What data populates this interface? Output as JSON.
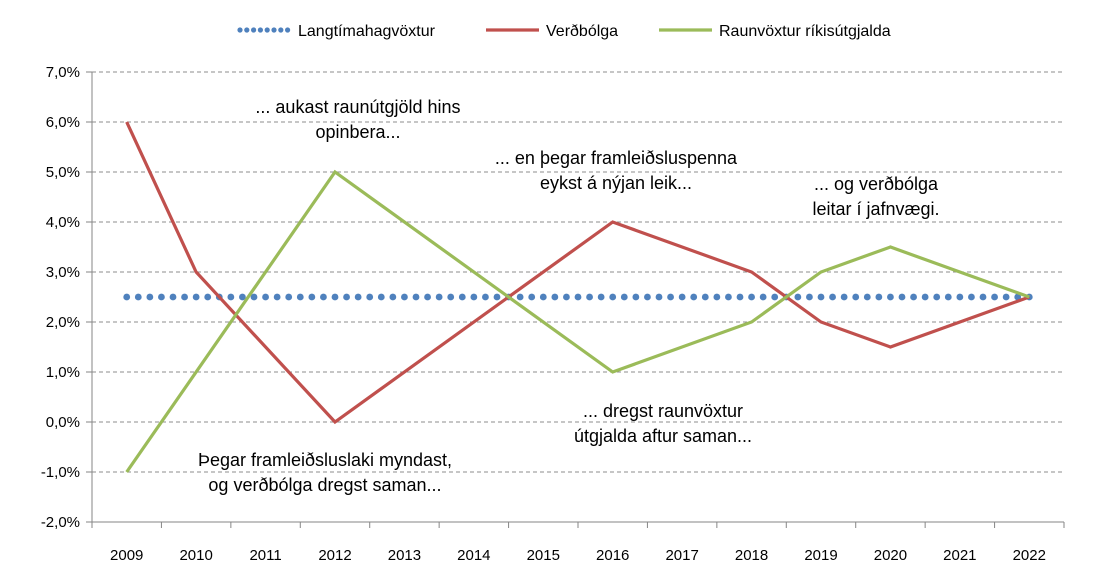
{
  "chart_data": {
    "type": "line",
    "categories": [
      "2009",
      "2010",
      "2011",
      "2012",
      "2013",
      "2014",
      "2015",
      "2016",
      "2017",
      "2018",
      "2019",
      "2020",
      "2021",
      "2022"
    ],
    "ylim": [
      -2.0,
      7.0
    ],
    "yticks": [
      -2.0,
      -1.0,
      0.0,
      1.0,
      2.0,
      3.0,
      4.0,
      5.0,
      6.0,
      7.0
    ],
    "ytick_labels": [
      "-2,0%",
      "-1,0%",
      "0,0%",
      "1,0%",
      "2,0%",
      "3,0%",
      "4,0%",
      "5,0%",
      "6,0%",
      "7,0%"
    ],
    "grid": true,
    "legend_position": "top",
    "series": [
      {
        "name": "Langtímahagvöxtur",
        "color": "#4F81BD",
        "style": "dotted",
        "values": [
          2.5,
          2.5,
          2.5,
          2.5,
          2.5,
          2.5,
          2.5,
          2.5,
          2.5,
          2.5,
          2.5,
          2.5,
          2.5,
          2.5
        ]
      },
      {
        "name": "Verðbólga",
        "color": "#C0504D",
        "style": "solid",
        "values": [
          6.0,
          3.0,
          null,
          0.0,
          null,
          null,
          null,
          4.0,
          null,
          3.0,
          2.0,
          1.5,
          null,
          2.5
        ]
      },
      {
        "name": "Raunvöxtur ríkisútgjalda",
        "color": "#9BBB59",
        "style": "solid",
        "values": [
          -1.0,
          null,
          null,
          5.0,
          null,
          null,
          null,
          1.0,
          null,
          2.0,
          3.0,
          3.5,
          null,
          2.5
        ]
      }
    ],
    "annotations": [
      {
        "lines": [
          "... aukast raunútgjöld hins",
          "opinbera..."
        ]
      },
      {
        "lines": [
          "... en þegar framleiðsluspenna",
          "eykst á nýjan leik..."
        ]
      },
      {
        "lines": [
          "... og verðbólga",
          "leitar í jafnvægi."
        ]
      },
      {
        "lines": [
          "... dregst raunvöxtur",
          "útgjalda aftur saman..."
        ]
      },
      {
        "lines": [
          "Þegar framleiðsluslaki myndast,",
          "og verðbólga dregst saman..."
        ]
      }
    ]
  }
}
